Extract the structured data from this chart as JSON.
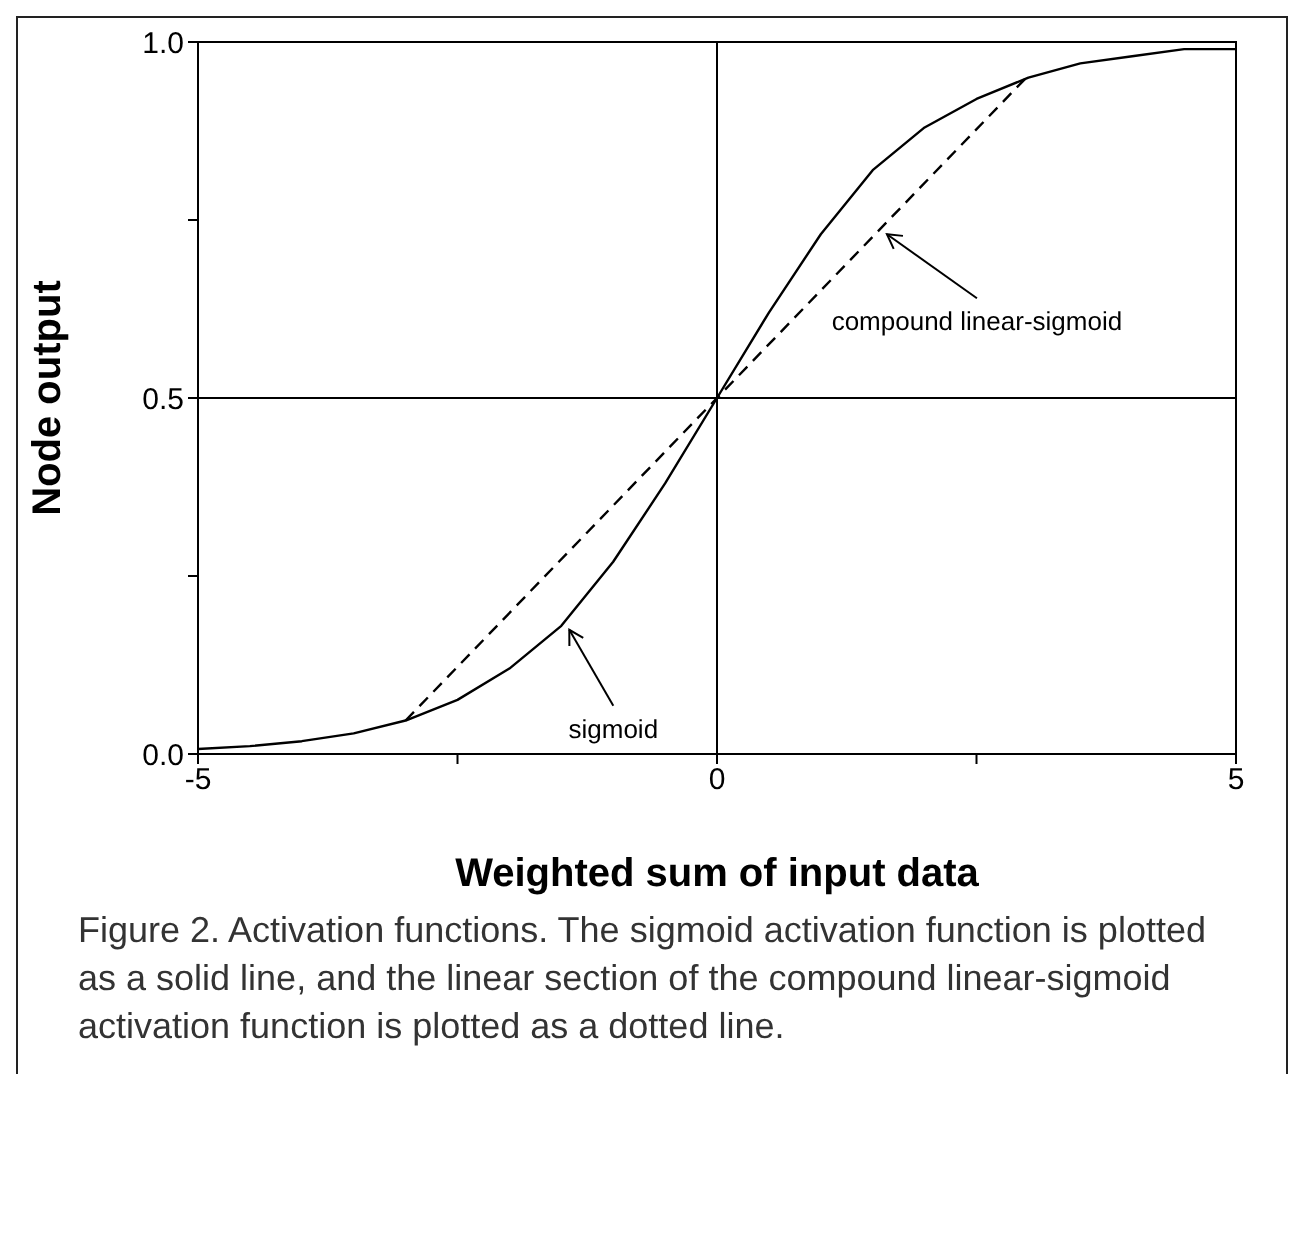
{
  "chart_data": {
    "type": "line",
    "xlabel": "Weighted sum of input data",
    "ylabel": "Node output",
    "xlim": [
      -5,
      5
    ],
    "ylim": [
      0,
      1
    ],
    "xticks": [
      -5,
      {
        "value": -2.5,
        "label": null
      },
      0,
      {
        "value": 2.5,
        "label": null
      },
      5
    ],
    "yticks": [
      {
        "value": 0,
        "label": "0.0"
      },
      {
        "value": 0.25,
        "label": null
      },
      {
        "value": 0.5,
        "label": "0.5"
      },
      {
        "value": 0.75,
        "label": null
      },
      {
        "value": 1,
        "label": "1.0"
      }
    ],
    "grid": false,
    "legend": false,
    "marker": "none",
    "ref_lines": [
      {
        "axis": "x",
        "value": 0,
        "color": "#000000"
      },
      {
        "axis": "y",
        "value": 0.5,
        "color": "#000000"
      }
    ],
    "series": [
      {
        "name": "sigmoid",
        "color": "#000000",
        "line_style": "solid",
        "x": [
          -5,
          -4.5,
          -4,
          -3.5,
          -3,
          -2.5,
          -2,
          -1.5,
          -1,
          -0.5,
          0,
          0.5,
          1,
          1.5,
          2,
          2.5,
          3,
          3.5,
          4,
          4.5,
          5
        ],
        "values": [
          0.007,
          0.011,
          0.018,
          0.029,
          0.047,
          0.076,
          0.12,
          0.18,
          0.27,
          0.38,
          0.5,
          0.62,
          0.73,
          0.82,
          0.88,
          0.92,
          0.95,
          0.97,
          0.98,
          0.99,
          0.99
        ]
      },
      {
        "name": "compound linear-sigmoid",
        "color": "#000000",
        "line_style": "dashed",
        "x": [
          -3,
          3
        ],
        "values": [
          0.047,
          0.953
        ]
      }
    ],
    "annotations": [
      "Figure 2. Activation functions. The sigmoid activation function is plotted as a solid line, and the linear section of the compound linear-sigmoid activation function is plotted as a dotted line."
    ]
  }
}
